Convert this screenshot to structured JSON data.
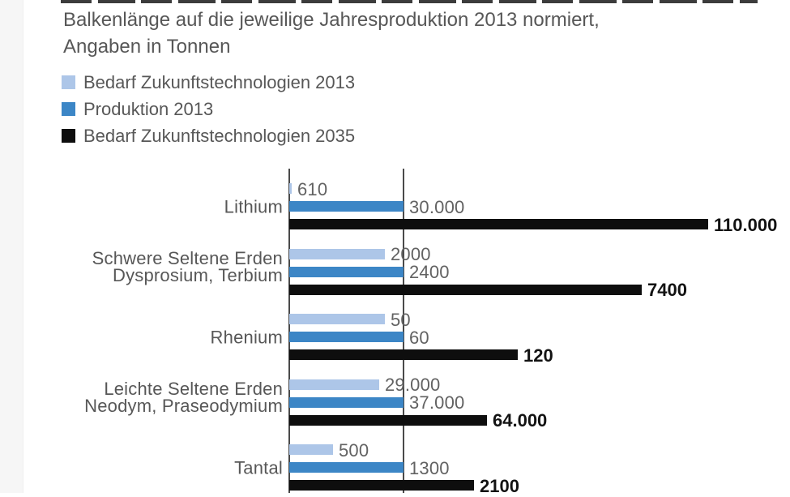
{
  "title": {
    "line1": "Balkenlänge auf die jeweilige Jahresproduktion 2013 normiert,",
    "line2": "Angaben in Tonnen"
  },
  "chart_data": {
    "type": "bar",
    "orientation": "horizontal",
    "title": "Balkenlänge auf die jeweilige Jahresproduktion 2013 normiert, Angaben in Tonnen",
    "unit": "Tonnen",
    "normalization": "bar lengths per row normalized to Produktion 2013",
    "legend_position": "top-left",
    "grid": "two vertical reference lines (zero line and Produktion-2013 line)",
    "categories": [
      "Lithium",
      "Schwere Seltene Erden Dysprosium, Terbium",
      "Rhenium",
      "Leichte Seltene Erden Neodym, Praseodymium",
      "Tantal"
    ],
    "category_label_lines": [
      [
        "Lithium"
      ],
      [
        "Schwere Seltene Erden",
        "Dysprosium, Terbium"
      ],
      [
        "Rhenium"
      ],
      [
        "Leichte Seltene Erden",
        "Neodym, Praseodymium"
      ],
      [
        "Tantal"
      ]
    ],
    "series": [
      {
        "name": "Bedarf Zukunftstechnologien 2013",
        "color": "#adc6e8",
        "values": [
          610,
          2000,
          50,
          29000,
          500
        ],
        "value_labels": [
          "610",
          "2000",
          "50",
          "29.000",
          "500"
        ]
      },
      {
        "name": "Produktion 2013",
        "color": "#3c86c6",
        "values": [
          30000,
          2400,
          60,
          37000,
          1300
        ],
        "value_labels": [
          "30.000",
          "2400",
          "60",
          "37.000",
          "1300"
        ]
      },
      {
        "name": "Bedarf Zukunftstechnologien 2035",
        "color": "#0e0e0e",
        "values": [
          110000,
          7400,
          120,
          64000,
          2100
        ],
        "value_labels": [
          "110.000",
          "7400",
          "120",
          "64.000",
          "2100"
        ]
      }
    ]
  }
}
